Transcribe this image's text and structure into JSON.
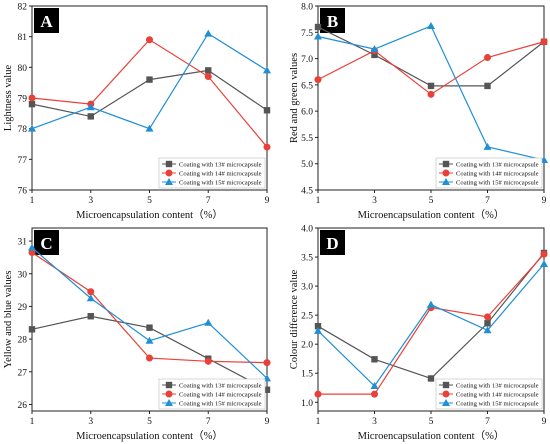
{
  "colors": {
    "s13": "#555555",
    "s14": "#e8413a",
    "s15": "#1f8fd6",
    "axis": "#222222",
    "panel_label_bg": "#000000",
    "panel_label_fg": "#ffffff"
  },
  "chart_data": [
    {
      "panel": "A",
      "type": "line",
      "xlabel": "Microencapsulation content（%）",
      "ylabel": "Lightness value",
      "x": [
        1,
        3,
        5,
        7,
        9
      ],
      "xlim": [
        1,
        9
      ],
      "xticks": [
        "1",
        "3",
        "5",
        "7",
        "9"
      ],
      "ylim": [
        76,
        82
      ],
      "yticks": [
        "76",
        "77",
        "78",
        "79",
        "80",
        "81",
        "82"
      ],
      "legend_position": "bottom-right",
      "series": [
        {
          "name": "Coating with 13# microcapsule",
          "marker": "square",
          "color": "#555555",
          "values": [
            78.8,
            78.4,
            79.6,
            79.9,
            78.6
          ]
        },
        {
          "name": "Coating with 14# microcapsule",
          "marker": "circle",
          "color": "#e8413a",
          "values": [
            79.0,
            78.8,
            80.9,
            79.7,
            77.4
          ]
        },
        {
          "name": "Coating with 15# microcapsule",
          "marker": "triangle",
          "color": "#1f8fd6",
          "values": [
            78.0,
            78.7,
            78.0,
            81.1,
            79.9
          ]
        }
      ]
    },
    {
      "panel": "B",
      "type": "line",
      "xlabel": "Microencapsulation content（%）",
      "ylabel": "Red and green values",
      "x": [
        1,
        3,
        5,
        7,
        9
      ],
      "xlim": [
        1,
        9
      ],
      "xticks": [
        "1",
        "3",
        "5",
        "7",
        "9"
      ],
      "ylim": [
        4.5,
        8.0
      ],
      "yticks": [
        "4.5",
        "5.0",
        "5.5",
        "6.0",
        "6.5",
        "7.0",
        "7.5",
        "8.0"
      ],
      "legend_position": "bottom-right",
      "series": [
        {
          "name": "Coating with 13# microcapsule",
          "marker": "square",
          "color": "#555555",
          "values": [
            7.6,
            7.07,
            6.48,
            6.48,
            7.32
          ]
        },
        {
          "name": "Coating with 14# microcapsule",
          "marker": "circle",
          "color": "#e8413a",
          "values": [
            6.6,
            7.15,
            6.32,
            7.02,
            7.32
          ]
        },
        {
          "name": "Coating with 15# microcapsule",
          "marker": "triangle",
          "color": "#1f8fd6",
          "values": [
            7.42,
            7.18,
            7.62,
            5.32,
            5.07
          ]
        }
      ]
    },
    {
      "panel": "C",
      "type": "line",
      "xlabel": "Microencapsulation content（%）",
      "ylabel": "Yellow and blue values",
      "x": [
        1,
        3,
        5,
        7,
        9
      ],
      "xlim": [
        1,
        9
      ],
      "xticks": [
        "1",
        "3",
        "5",
        "7",
        "9"
      ],
      "ylim": [
        25.8,
        31.4
      ],
      "yticks": [
        "26",
        "27",
        "28",
        "29",
        "30",
        "31"
      ],
      "legend_position": "bottom-right",
      "series": [
        {
          "name": "Coating with 13# microcapsule",
          "marker": "square",
          "color": "#555555",
          "values": [
            28.3,
            28.7,
            28.35,
            27.4,
            26.45
          ]
        },
        {
          "name": "Coating with 14# microcapsule",
          "marker": "circle",
          "color": "#e8413a",
          "values": [
            30.65,
            29.45,
            27.42,
            27.32,
            27.28
          ]
        },
        {
          "name": "Coating with 15# microcapsule",
          "marker": "triangle",
          "color": "#1f8fd6",
          "values": [
            30.8,
            29.25,
            27.95,
            28.5,
            26.8
          ]
        }
      ]
    },
    {
      "panel": "D",
      "type": "line",
      "xlabel": "Microencapsulation content（%）",
      "ylabel": "Colour difference value",
      "x": [
        1,
        3,
        5,
        7,
        9
      ],
      "xlim": [
        1,
        9
      ],
      "xticks": [
        "1",
        "3",
        "5",
        "7",
        "9"
      ],
      "ylim": [
        0.85,
        4.0
      ],
      "yticks": [
        "1.0",
        "1.5",
        "2.0",
        "2.5",
        "3.0",
        "3.5",
        "4.0"
      ],
      "legend_position": "bottom-right",
      "series": [
        {
          "name": "Coating with 13# microcapsule",
          "marker": "square",
          "color": "#555555",
          "values": [
            2.31,
            1.74,
            1.41,
            2.36,
            3.57
          ]
        },
        {
          "name": "Coating with 14# microcapsule",
          "marker": "circle",
          "color": "#e8413a",
          "values": [
            1.14,
            1.14,
            2.63,
            2.47,
            3.55
          ]
        },
        {
          "name": "Coating with 15# microcapsule",
          "marker": "triangle",
          "color": "#1f8fd6",
          "values": [
            2.23,
            1.28,
            2.68,
            2.24,
            3.38
          ]
        }
      ]
    }
  ]
}
